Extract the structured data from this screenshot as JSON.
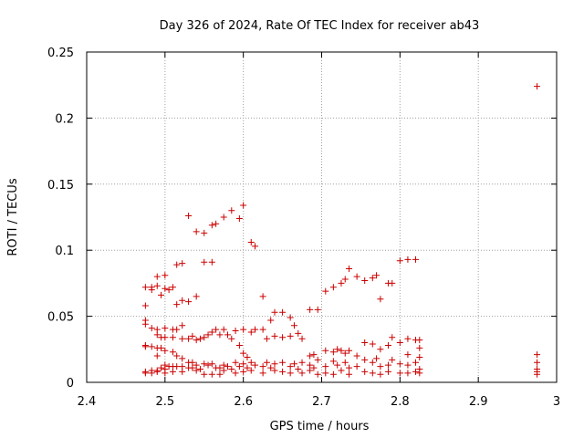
{
  "chart_data": {
    "type": "scatter",
    "title": "Day 326 of 2024, Rate Of TEC Index for receiver ab43",
    "xlabel": "GPS time / hours",
    "ylabel": "ROTI / TECUs",
    "xlim": [
      2.4,
      3.0
    ],
    "ylim": [
      0,
      0.25
    ],
    "x_ticks": [
      "2.4",
      "2.5",
      "2.6",
      "2.7",
      "2.8",
      "2.9",
      "3"
    ],
    "y_ticks": [
      "0",
      "0.05",
      "0.1",
      "0.15",
      "0.2",
      "0.25"
    ],
    "grid": true,
    "marker": "+",
    "series": [
      {
        "color": "#cc0000",
        "points": [
          [
            2.475,
            0.072
          ],
          [
            2.475,
            0.058
          ],
          [
            2.475,
            0.047
          ],
          [
            2.475,
            0.044
          ],
          [
            2.475,
            0.028
          ],
          [
            2.475,
            0.027
          ],
          [
            2.475,
            0.008
          ],
          [
            2.475,
            0.007
          ],
          [
            2.483,
            0.072
          ],
          [
            2.483,
            0.07
          ],
          [
            2.483,
            0.041
          ],
          [
            2.483,
            0.027
          ],
          [
            2.483,
            0.009
          ],
          [
            2.483,
            0.007
          ],
          [
            2.49,
            0.08
          ],
          [
            2.49,
            0.073
          ],
          [
            2.49,
            0.04
          ],
          [
            2.49,
            0.036
          ],
          [
            2.49,
            0.026
          ],
          [
            2.49,
            0.02
          ],
          [
            2.49,
            0.009
          ],
          [
            2.49,
            0.008
          ],
          [
            2.495,
            0.066
          ],
          [
            2.495,
            0.034
          ],
          [
            2.495,
            0.026
          ],
          [
            2.495,
            0.011
          ],
          [
            2.5,
            0.081
          ],
          [
            2.5,
            0.071
          ],
          [
            2.5,
            0.041
          ],
          [
            2.5,
            0.034
          ],
          [
            2.5,
            0.024
          ],
          [
            2.5,
            0.013
          ],
          [
            2.5,
            0.01
          ],
          [
            2.5,
            0.007
          ],
          [
            2.505,
            0.07
          ],
          [
            2.505,
            0.012
          ],
          [
            2.51,
            0.072
          ],
          [
            2.51,
            0.04
          ],
          [
            2.51,
            0.034
          ],
          [
            2.51,
            0.023
          ],
          [
            2.51,
            0.012
          ],
          [
            2.51,
            0.008
          ],
          [
            2.515,
            0.089
          ],
          [
            2.515,
            0.059
          ],
          [
            2.515,
            0.04
          ],
          [
            2.515,
            0.02
          ],
          [
            2.515,
            0.012
          ],
          [
            2.522,
            0.09
          ],
          [
            2.522,
            0.062
          ],
          [
            2.522,
            0.043
          ],
          [
            2.522,
            0.033
          ],
          [
            2.522,
            0.018
          ],
          [
            2.522,
            0.012
          ],
          [
            2.522,
            0.008
          ],
          [
            2.53,
            0.126
          ],
          [
            2.53,
            0.061
          ],
          [
            2.53,
            0.033
          ],
          [
            2.53,
            0.015
          ],
          [
            2.53,
            0.011
          ],
          [
            2.535,
            0.035
          ],
          [
            2.535,
            0.015
          ],
          [
            2.535,
            0.011
          ],
          [
            2.54,
            0.114
          ],
          [
            2.54,
            0.065
          ],
          [
            2.54,
            0.032
          ],
          [
            2.54,
            0.013
          ],
          [
            2.54,
            0.009
          ],
          [
            2.545,
            0.033
          ],
          [
            2.545,
            0.01
          ],
          [
            2.55,
            0.113
          ],
          [
            2.55,
            0.091
          ],
          [
            2.55,
            0.034
          ],
          [
            2.55,
            0.014
          ],
          [
            2.55,
            0.006
          ],
          [
            2.555,
            0.036
          ],
          [
            2.555,
            0.013
          ],
          [
            2.56,
            0.119
          ],
          [
            2.56,
            0.091
          ],
          [
            2.56,
            0.038
          ],
          [
            2.56,
            0.014
          ],
          [
            2.56,
            0.006
          ],
          [
            2.565,
            0.12
          ],
          [
            2.565,
            0.04
          ],
          [
            2.565,
            0.011
          ],
          [
            2.57,
            0.036
          ],
          [
            2.57,
            0.011
          ],
          [
            2.57,
            0.006
          ],
          [
            2.575,
            0.125
          ],
          [
            2.575,
            0.04
          ],
          [
            2.575,
            0.013
          ],
          [
            2.575,
            0.009
          ],
          [
            2.58,
            0.036
          ],
          [
            2.58,
            0.012
          ],
          [
            2.585,
            0.13
          ],
          [
            2.585,
            0.033
          ],
          [
            2.585,
            0.01
          ],
          [
            2.59,
            0.039
          ],
          [
            2.59,
            0.015
          ],
          [
            2.59,
            0.007
          ],
          [
            2.595,
            0.124
          ],
          [
            2.595,
            0.028
          ],
          [
            2.595,
            0.012
          ],
          [
            2.6,
            0.134
          ],
          [
            2.6,
            0.04
          ],
          [
            2.6,
            0.022
          ],
          [
            2.6,
            0.014
          ],
          [
            2.6,
            0.008
          ],
          [
            2.605,
            0.019
          ],
          [
            2.605,
            0.011
          ],
          [
            2.61,
            0.106
          ],
          [
            2.61,
            0.038
          ],
          [
            2.61,
            0.015
          ],
          [
            2.61,
            0.009
          ],
          [
            2.615,
            0.103
          ],
          [
            2.615,
            0.04
          ],
          [
            2.615,
            0.013
          ],
          [
            2.625,
            0.065
          ],
          [
            2.625,
            0.04
          ],
          [
            2.625,
            0.012
          ],
          [
            2.625,
            0.007
          ],
          [
            2.63,
            0.033
          ],
          [
            2.63,
            0.015
          ],
          [
            2.635,
            0.047
          ],
          [
            2.635,
            0.011
          ],
          [
            2.64,
            0.053
          ],
          [
            2.64,
            0.035
          ],
          [
            2.64,
            0.014
          ],
          [
            2.64,
            0.009
          ],
          [
            2.65,
            0.053
          ],
          [
            2.65,
            0.034
          ],
          [
            2.65,
            0.015
          ],
          [
            2.65,
            0.008
          ],
          [
            2.66,
            0.049
          ],
          [
            2.66,
            0.035
          ],
          [
            2.66,
            0.012
          ],
          [
            2.66,
            0.007
          ],
          [
            2.665,
            0.043
          ],
          [
            2.665,
            0.014
          ],
          [
            2.67,
            0.037
          ],
          [
            2.67,
            0.01
          ],
          [
            2.675,
            0.033
          ],
          [
            2.675,
            0.015
          ],
          [
            2.675,
            0.007
          ],
          [
            2.685,
            0.055
          ],
          [
            2.685,
            0.02
          ],
          [
            2.685,
            0.013
          ],
          [
            2.685,
            0.009
          ],
          [
            2.69,
            0.021
          ],
          [
            2.69,
            0.011
          ],
          [
            2.695,
            0.055
          ],
          [
            2.695,
            0.017
          ],
          [
            2.695,
            0.006
          ],
          [
            2.705,
            0.069
          ],
          [
            2.705,
            0.024
          ],
          [
            2.705,
            0.012
          ],
          [
            2.705,
            0.007
          ],
          [
            2.715,
            0.072
          ],
          [
            2.715,
            0.023
          ],
          [
            2.715,
            0.016
          ],
          [
            2.715,
            0.006
          ],
          [
            2.72,
            0.025
          ],
          [
            2.72,
            0.013
          ],
          [
            2.725,
            0.075
          ],
          [
            2.725,
            0.024
          ],
          [
            2.725,
            0.009
          ],
          [
            2.73,
            0.078
          ],
          [
            2.73,
            0.022
          ],
          [
            2.73,
            0.015
          ],
          [
            2.735,
            0.086
          ],
          [
            2.735,
            0.024
          ],
          [
            2.735,
            0.011
          ],
          [
            2.735,
            0.006
          ],
          [
            2.745,
            0.08
          ],
          [
            2.745,
            0.02
          ],
          [
            2.745,
            0.012
          ],
          [
            2.755,
            0.077
          ],
          [
            2.755,
            0.03
          ],
          [
            2.755,
            0.017
          ],
          [
            2.755,
            0.008
          ],
          [
            2.765,
            0.079
          ],
          [
            2.765,
            0.029
          ],
          [
            2.765,
            0.015
          ],
          [
            2.765,
            0.007
          ],
          [
            2.77,
            0.081
          ],
          [
            2.77,
            0.018
          ],
          [
            2.775,
            0.063
          ],
          [
            2.775,
            0.025
          ],
          [
            2.775,
            0.012
          ],
          [
            2.775,
            0.006
          ],
          [
            2.785,
            0.075
          ],
          [
            2.785,
            0.028
          ],
          [
            2.785,
            0.013
          ],
          [
            2.785,
            0.008
          ],
          [
            2.79,
            0.075
          ],
          [
            2.79,
            0.034
          ],
          [
            2.79,
            0.017
          ],
          [
            2.8,
            0.092
          ],
          [
            2.8,
            0.03
          ],
          [
            2.8,
            0.014
          ],
          [
            2.8,
            0.007
          ],
          [
            2.81,
            0.093
          ],
          [
            2.81,
            0.033
          ],
          [
            2.81,
            0.021
          ],
          [
            2.81,
            0.013
          ],
          [
            2.81,
            0.007
          ],
          [
            2.82,
            0.093
          ],
          [
            2.82,
            0.032
          ],
          [
            2.82,
            0.015
          ],
          [
            2.82,
            0.008
          ],
          [
            2.825,
            0.032
          ],
          [
            2.825,
            0.026
          ],
          [
            2.825,
            0.019
          ],
          [
            2.825,
            0.01
          ],
          [
            2.825,
            0.007
          ],
          [
            2.975,
            0.224
          ],
          [
            2.975,
            0.021
          ],
          [
            2.975,
            0.015
          ],
          [
            2.975,
            0.01
          ],
          [
            2.975,
            0.008
          ],
          [
            2.975,
            0.006
          ]
        ]
      }
    ]
  }
}
